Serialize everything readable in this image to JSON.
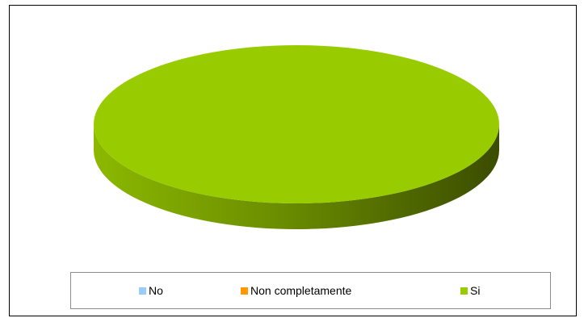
{
  "chart_data": {
    "type": "pie",
    "title": "",
    "categories": [
      "No",
      "Non completamente",
      "Si"
    ],
    "values": [
      0,
      0,
      100
    ],
    "colors": [
      "#99ccff",
      "#ff9900",
      "#99cc00"
    ],
    "legend_position": "bottom",
    "style": "3d-pie"
  }
}
